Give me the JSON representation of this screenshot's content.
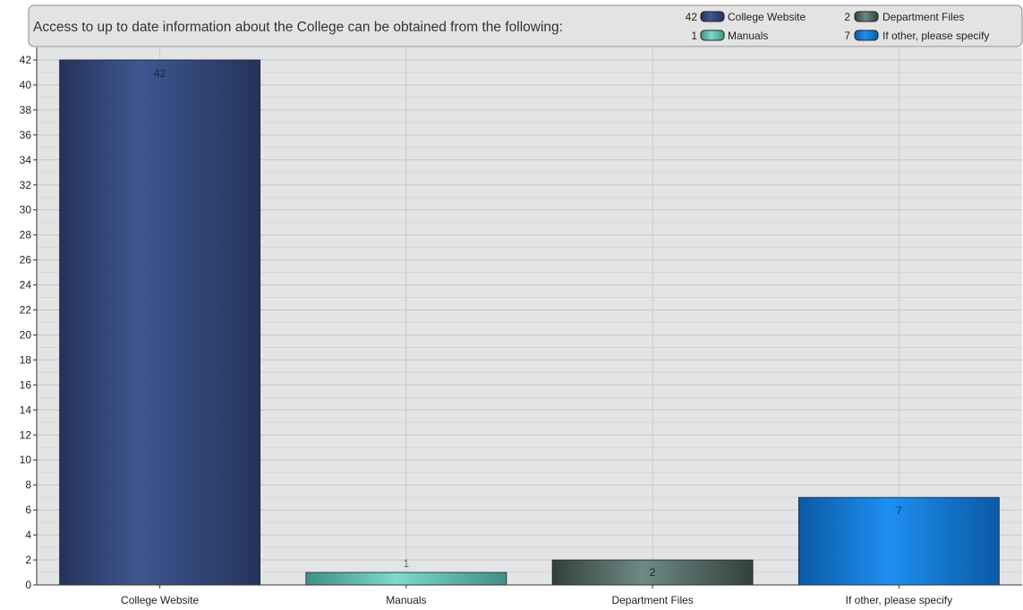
{
  "chart_data": {
    "type": "bar",
    "title": "Access to up to date information about the College can be obtained from the following:",
    "categories": [
      "College Website",
      "Manuals",
      "Department Files",
      "If other, please specify"
    ],
    "values": [
      42,
      1,
      2,
      7
    ],
    "ylim": [
      0,
      42
    ],
    "ytick_step": 2,
    "grid": true,
    "legend_position": "top-right",
    "legend": [
      {
        "count": "42",
        "label": "College Website"
      },
      {
        "count": "2",
        "label": "Department Files"
      },
      {
        "count": "1",
        "label": "Manuals"
      },
      {
        "count": "7",
        "label": "If other, please specify"
      }
    ],
    "colors": {
      "College Website": "#3b5289",
      "Manuals": "#6cc7bb",
      "Department Files": "#5e7772",
      "If other, please specify": "#1f7fd8"
    },
    "data_labels": [
      "42",
      "1",
      "2",
      "7"
    ]
  }
}
